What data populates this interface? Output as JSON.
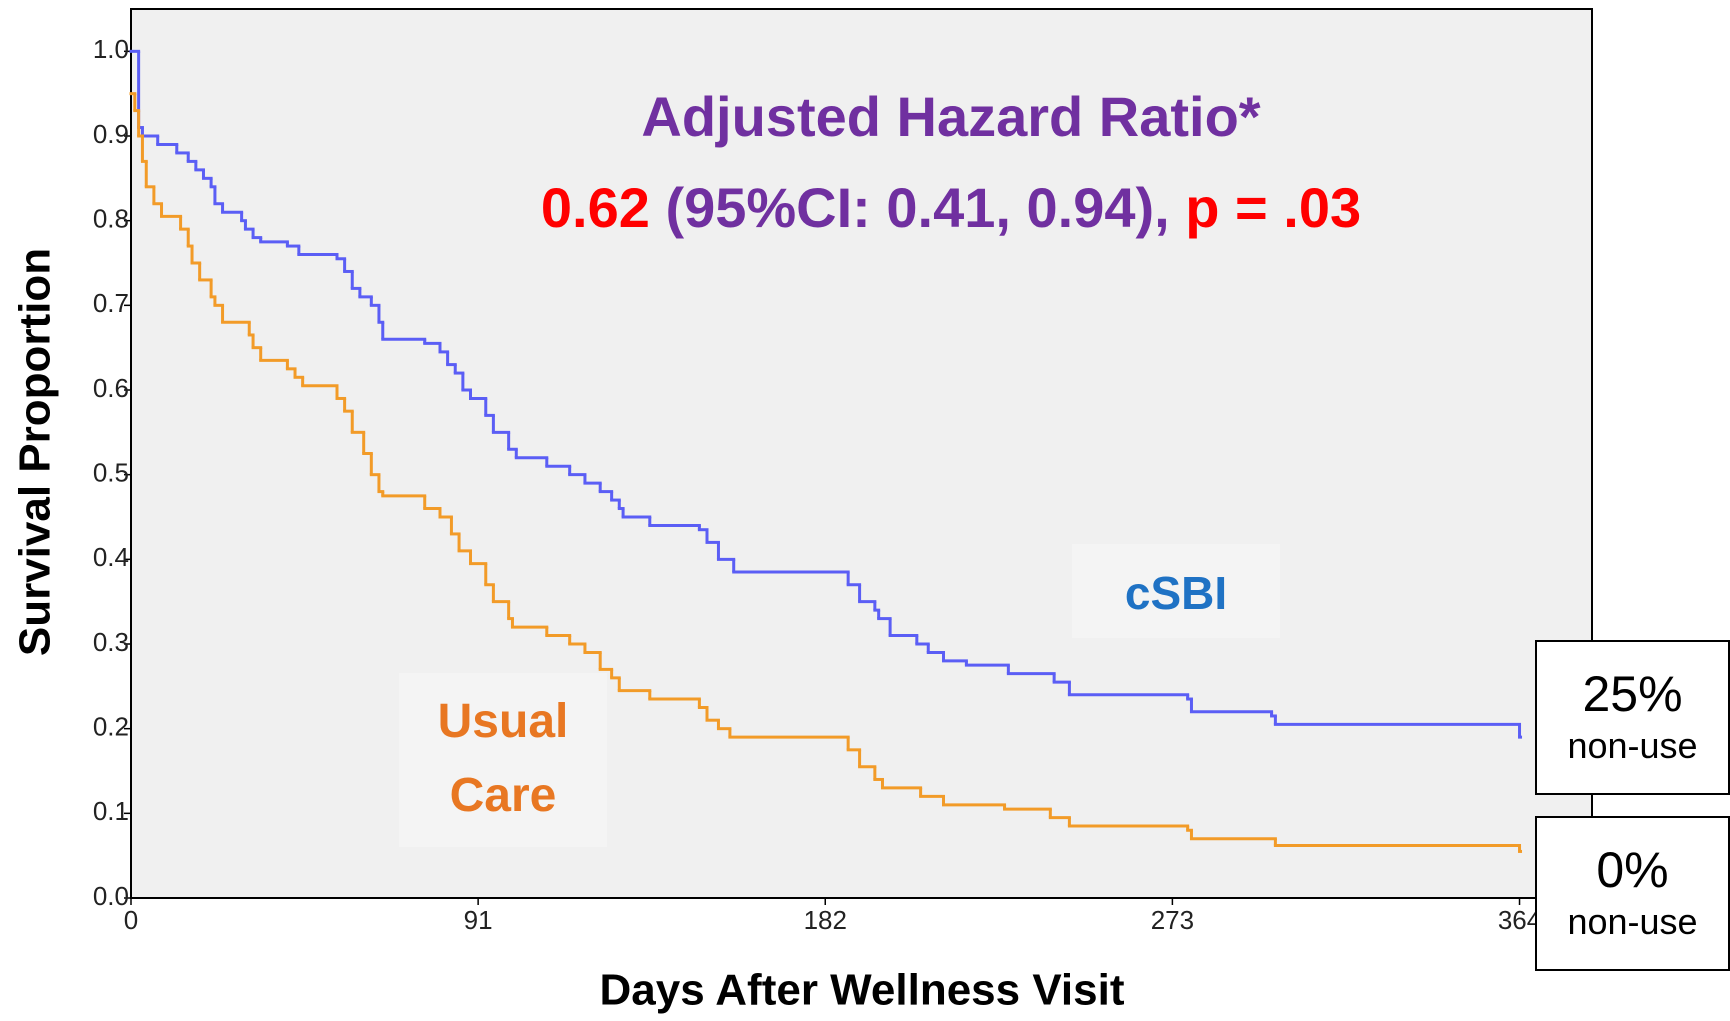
{
  "chart_data": {
    "type": "line",
    "step": true,
    "annotation": {
      "title": "Adjusted Hazard Ratio*",
      "estimate": "0.62",
      "interval": "(95%CI: 0.41, 0.94),",
      "p": "p = .03"
    },
    "x_label": "Days After Wellness Visit",
    "y_label": "Survival Proportion",
    "xlim": [
      0,
      383
    ],
    "ylim": [
      0,
      1.05
    ],
    "xticks": [
      0,
      91,
      182,
      273,
      364
    ],
    "yticks": [
      {
        "value": 0,
        "label": "0.0"
      },
      {
        "value": 0.1,
        "label": "0.1"
      },
      {
        "value": 0.2,
        "label": "0.2"
      },
      {
        "value": 0.3,
        "label": "0.3"
      },
      {
        "value": 0.4,
        "label": "0.4"
      },
      {
        "value": 0.5,
        "label": "0.5"
      },
      {
        "value": 0.6,
        "label": "0.6"
      },
      {
        "value": 0.7,
        "label": "0.7"
      },
      {
        "value": 0.8,
        "label": "0.8"
      },
      {
        "value": 0.9,
        "label": "0.9"
      },
      {
        "value": 1,
        "label": "1.0"
      }
    ],
    "series": [
      {
        "name": "cSBI",
        "color": "#5b5ef5",
        "label_color": "#1f72c4",
        "x": [
          0,
          2,
          3,
          7,
          12,
          15,
          17,
          19,
          21,
          22,
          24,
          29,
          30,
          32,
          34,
          41,
          44,
          54,
          56,
          58,
          60,
          63,
          65,
          66,
          77,
          81,
          83,
          85,
          87,
          89,
          93,
          95,
          99,
          101,
          109,
          115,
          119,
          123,
          126,
          128,
          129,
          136,
          149,
          151,
          154,
          158,
          188,
          191,
          195,
          196,
          199,
          206,
          209,
          213,
          219,
          230,
          242,
          246,
          277,
          278,
          299,
          300,
          364
        ],
        "values": [
          1.0,
          0.91,
          0.9,
          0.89,
          0.88,
          0.87,
          0.86,
          0.85,
          0.84,
          0.82,
          0.81,
          0.8,
          0.79,
          0.78,
          0.775,
          0.77,
          0.76,
          0.755,
          0.74,
          0.72,
          0.71,
          0.7,
          0.68,
          0.66,
          0.655,
          0.645,
          0.63,
          0.62,
          0.6,
          0.59,
          0.57,
          0.55,
          0.53,
          0.52,
          0.51,
          0.5,
          0.49,
          0.48,
          0.47,
          0.46,
          0.45,
          0.44,
          0.435,
          0.42,
          0.4,
          0.385,
          0.37,
          0.35,
          0.34,
          0.33,
          0.31,
          0.3,
          0.29,
          0.28,
          0.275,
          0.265,
          0.255,
          0.24,
          0.235,
          0.22,
          0.215,
          0.205,
          0.19
        ]
      },
      {
        "name": "Usual Care",
        "color": "#f29b28",
        "label_color": "#e87722",
        "x": [
          0,
          1,
          2,
          3,
          4,
          6,
          8,
          13,
          15,
          16,
          18,
          21,
          22,
          24,
          31,
          32,
          34,
          41,
          43,
          45,
          54,
          56,
          58,
          61,
          63,
          65,
          66,
          77,
          81,
          84,
          86,
          89,
          93,
          95,
          99,
          100,
          109,
          115,
          119,
          123,
          126,
          128,
          136,
          149,
          151,
          154,
          157,
          188,
          191,
          195,
          197,
          207,
          213,
          229,
          241,
          246,
          277,
          278,
          300,
          364
        ],
        "values": [
          0.95,
          0.93,
          0.9,
          0.87,
          0.84,
          0.82,
          0.805,
          0.79,
          0.77,
          0.75,
          0.73,
          0.71,
          0.7,
          0.68,
          0.665,
          0.65,
          0.635,
          0.625,
          0.615,
          0.605,
          0.59,
          0.575,
          0.55,
          0.525,
          0.5,
          0.48,
          0.475,
          0.46,
          0.45,
          0.43,
          0.41,
          0.395,
          0.37,
          0.35,
          0.33,
          0.32,
          0.31,
          0.3,
          0.29,
          0.27,
          0.26,
          0.245,
          0.235,
          0.225,
          0.21,
          0.2,
          0.19,
          0.175,
          0.155,
          0.14,
          0.13,
          0.12,
          0.11,
          0.105,
          0.095,
          0.085,
          0.08,
          0.07,
          0.062,
          0.055
        ]
      }
    ],
    "end_boxes": [
      {
        "percent": "25%",
        "text": "non-use"
      },
      {
        "percent": "0%",
        "text": "non-use"
      }
    ]
  }
}
